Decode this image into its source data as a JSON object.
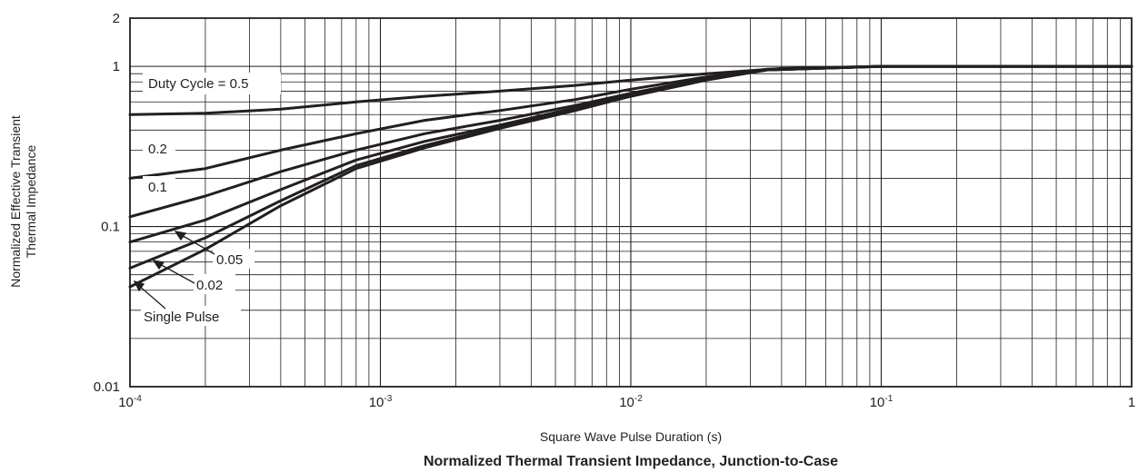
{
  "chart_data": {
    "type": "line",
    "title": "Normalized Thermal Transient Impedance, Junction-to-Case",
    "xlabel": "Square Wave Pulse Duration (s)",
    "ylabel": [
      "Normalized Effective Transient",
      "Thermal Impedance"
    ],
    "x_scale": "log",
    "y_scale": "log",
    "xlim": [
      0.0001,
      1
    ],
    "ylim": [
      0.01,
      2
    ],
    "grid": true,
    "x_ticks": [
      {
        "value": 0.0001,
        "base": "10",
        "exp": "-4"
      },
      {
        "value": 0.001,
        "base": "10",
        "exp": "-3"
      },
      {
        "value": 0.01,
        "base": "10",
        "exp": "-2"
      },
      {
        "value": 0.1,
        "base": "10",
        "exp": "-1"
      },
      {
        "value": 1,
        "base": "1",
        "exp": ""
      }
    ],
    "y_ticks": [
      {
        "value": 2,
        "label": "2"
      },
      {
        "value": 1,
        "label": "1"
      },
      {
        "value": 0.1,
        "label": "0.1"
      },
      {
        "value": 0.01,
        "label": "0.01"
      }
    ],
    "series": [
      {
        "name": "Duty Cycle = 0.5",
        "x": [
          0.0001,
          0.0002,
          0.0004,
          0.0008,
          0.0015,
          0.003,
          0.006,
          0.01,
          0.02,
          0.04,
          0.1,
          1
        ],
        "y": [
          0.5,
          0.51,
          0.54,
          0.6,
          0.65,
          0.7,
          0.76,
          0.82,
          0.9,
          0.97,
          1.0,
          1.0
        ]
      },
      {
        "name": "0.2",
        "x": [
          0.0001,
          0.0002,
          0.0004,
          0.0008,
          0.0015,
          0.003,
          0.006,
          0.01,
          0.02,
          0.035,
          0.1,
          1
        ],
        "y": [
          0.2,
          0.23,
          0.3,
          0.38,
          0.46,
          0.53,
          0.62,
          0.72,
          0.86,
          0.96,
          1.0,
          1.0
        ]
      },
      {
        "name": "0.1",
        "x": [
          0.0001,
          0.0002,
          0.0004,
          0.0008,
          0.0015,
          0.003,
          0.006,
          0.01,
          0.02,
          0.035,
          0.1,
          1
        ],
        "y": [
          0.115,
          0.155,
          0.22,
          0.3,
          0.38,
          0.46,
          0.57,
          0.68,
          0.84,
          0.95,
          1.0,
          1.0
        ]
      },
      {
        "name": "0.05",
        "x": [
          0.0001,
          0.0002,
          0.0004,
          0.0008,
          0.0015,
          0.003,
          0.006,
          0.01,
          0.02,
          0.035,
          0.1,
          1
        ],
        "y": [
          0.08,
          0.11,
          0.17,
          0.26,
          0.34,
          0.43,
          0.55,
          0.67,
          0.83,
          0.95,
          1.0,
          1.0
        ]
      },
      {
        "name": "0.02",
        "x": [
          0.0001,
          0.0002,
          0.0004,
          0.0008,
          0.0015,
          0.003,
          0.006,
          0.01,
          0.02,
          0.035,
          0.1,
          1
        ],
        "y": [
          0.055,
          0.085,
          0.145,
          0.24,
          0.32,
          0.42,
          0.54,
          0.66,
          0.83,
          0.95,
          1.0,
          1.0
        ]
      },
      {
        "name": "Single Pulse",
        "x": [
          0.0001,
          0.0002,
          0.0004,
          0.0008,
          0.0015,
          0.003,
          0.006,
          0.01,
          0.02,
          0.035,
          0.1,
          1
        ],
        "y": [
          0.042,
          0.072,
          0.135,
          0.23,
          0.31,
          0.41,
          0.53,
          0.65,
          0.82,
          0.95,
          1.0,
          1.0
        ]
      }
    ]
  }
}
